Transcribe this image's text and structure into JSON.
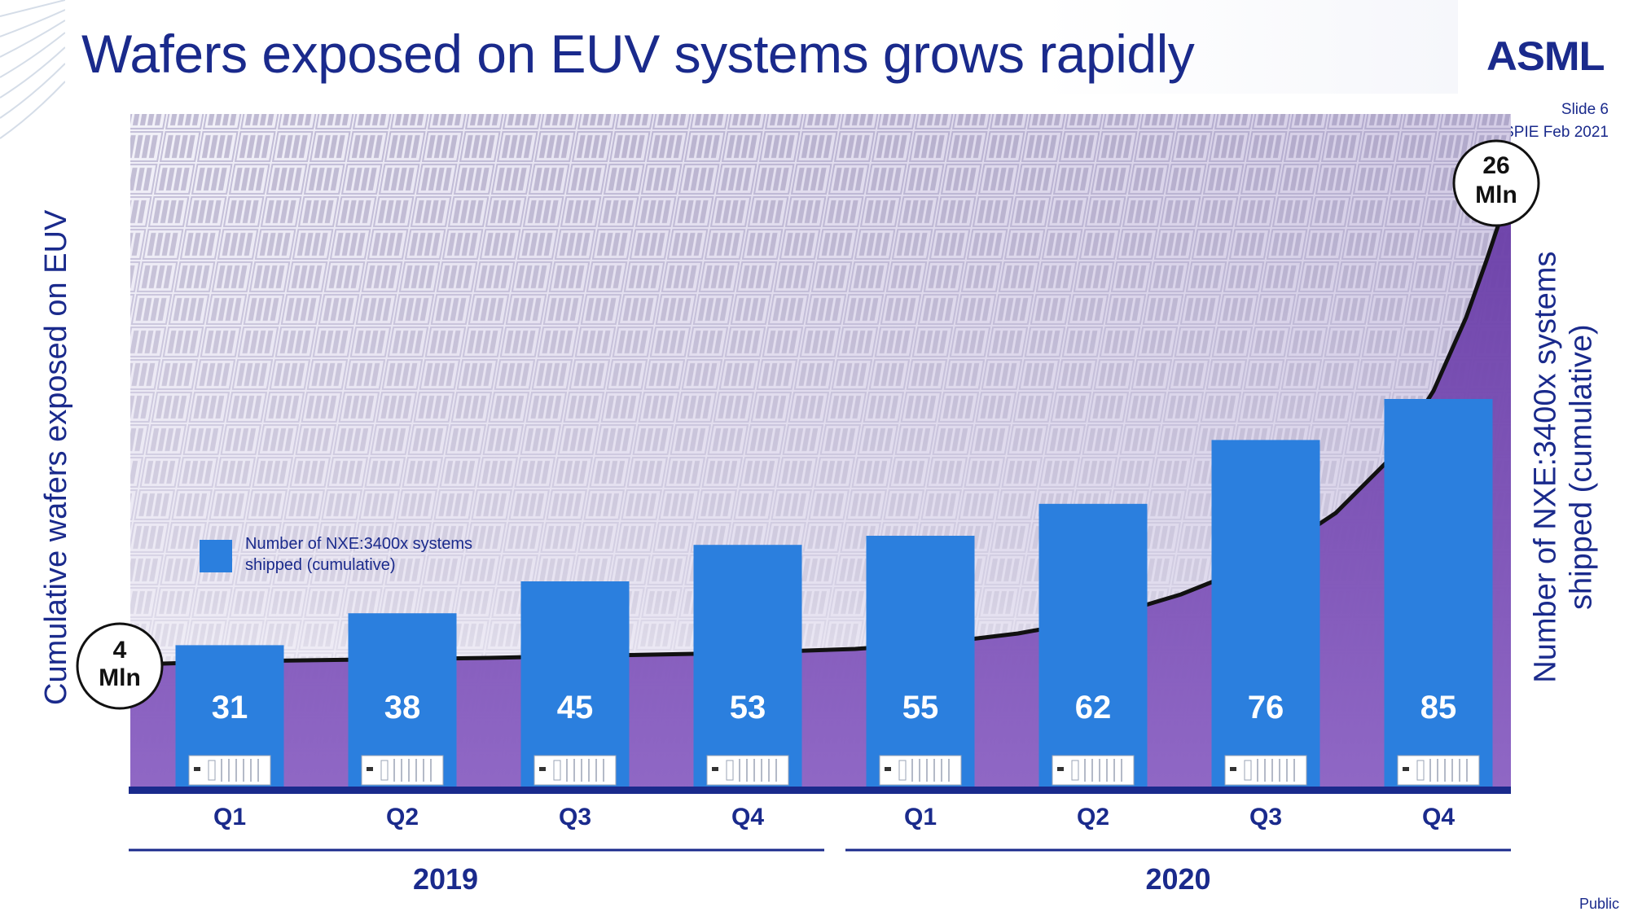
{
  "slide": {
    "title": "Wafers exposed on EUV systems grows rapidly",
    "logo": "ASML",
    "slide_number": "Slide 6",
    "event_date": "SPIE Feb 2021",
    "classification": "Public"
  },
  "colors": {
    "title": "#1a2a8c",
    "bar": "#2b7fde",
    "area": "#6b3fa8",
    "axis": "#1a2a8c",
    "curve": "#111111"
  },
  "chart_data": {
    "type": "bar",
    "categories": [
      "Q1",
      "Q2",
      "Q3",
      "Q4",
      "Q1",
      "Q2",
      "Q3",
      "Q4"
    ],
    "groups": [
      {
        "label": "2019",
        "categories": [
          "Q1",
          "Q2",
          "Q3",
          "Q4"
        ]
      },
      {
        "label": "2020",
        "categories": [
          "Q1",
          "Q2",
          "Q3",
          "Q4"
        ]
      }
    ],
    "series": [
      {
        "name": "Number of NXE:3400x systems shipped (cumulative)",
        "values": [
          31,
          38,
          45,
          53,
          55,
          62,
          76,
          85
        ],
        "axis": "right"
      }
    ],
    "line_series": {
      "axis": "left",
      "start_label": [
        "4",
        "Mln"
      ],
      "end_label": [
        "26",
        "Mln"
      ],
      "start_value": 4,
      "end_value": 26
    },
    "ylabel_left": "Cumulative wafers exposed on EUV",
    "ylabel_right": "Number of NXE:3400x systems shipped (cumulative)",
    "ylabel_right_lines": [
      "Number of NXE:3400x systems",
      "shipped (cumulative)"
    ],
    "legend": {
      "label": "Number of NXE:3400x systems shipped (cumulative)",
      "label_lines": [
        "Number of NXE:3400x systems",
        "shipped (cumulative)"
      ],
      "position": "inside-left"
    },
    "data_labels": true,
    "grid": false
  }
}
